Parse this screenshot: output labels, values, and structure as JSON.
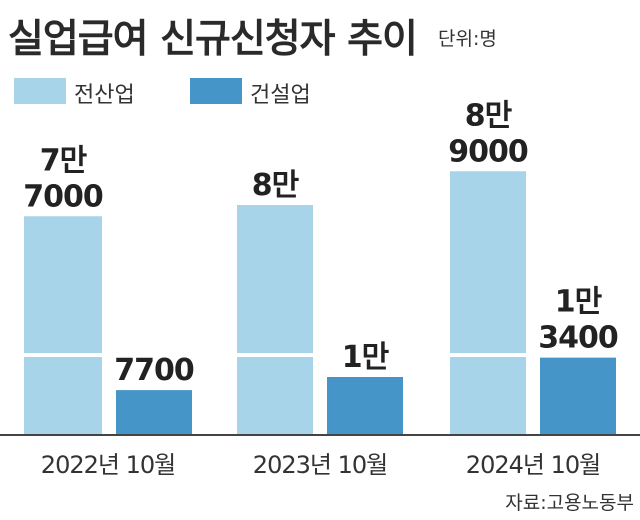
{
  "title": "실업급여 신규신청자 추이",
  "unit": "단위:명",
  "source": "자료:고용노동부",
  "colors": {
    "all_industries": "#a8d4ea",
    "construction": "#4595c9",
    "axis": "#444444",
    "divider": "#ffffff"
  },
  "chart_data": {
    "type": "bar",
    "categories": [
      "2022년 10월",
      "2023년 10월",
      "2024년 10월"
    ],
    "series": [
      {
        "name": "전산업",
        "values": [
          77000,
          80000,
          89000
        ],
        "labels": [
          [
            "7만",
            "7000"
          ],
          [
            "8만"
          ],
          [
            "8만",
            "9000"
          ]
        ]
      },
      {
        "name": "건설업",
        "values": [
          7700,
          10000,
          13400
        ],
        "labels": [
          [
            "7700"
          ],
          [
            "1만"
          ],
          [
            "1만",
            "3400"
          ]
        ]
      }
    ],
    "axis_break": true,
    "legend": "top-left"
  }
}
